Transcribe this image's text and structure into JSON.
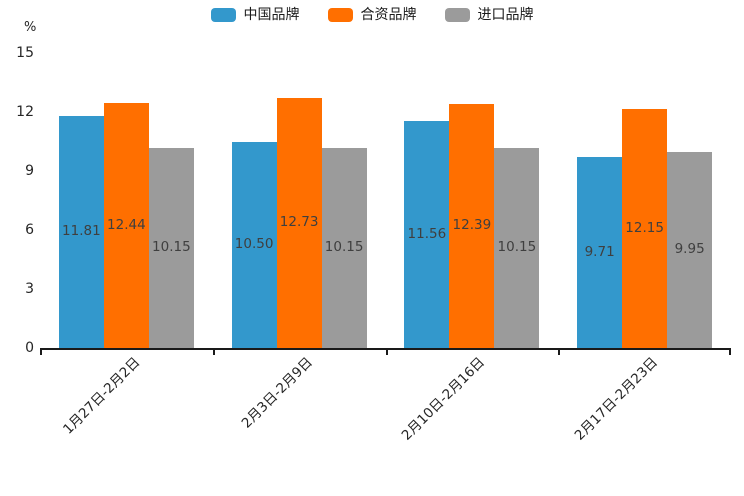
{
  "chart_data": {
    "type": "bar",
    "title": "",
    "ylabel": "%",
    "xlabel": "",
    "ylim": [
      0,
      15
    ],
    "yticks": [
      "0",
      "3",
      "6",
      "9",
      "12",
      "15"
    ],
    "grid": false,
    "legend_position": "top",
    "value_labels_position": "center-of-bar",
    "categories": [
      "1月27日-2月2日",
      "2月3日-2月9日",
      "2月10日-2月16日",
      "2月17日-2月23日"
    ],
    "series": [
      {
        "name": "中国品牌",
        "color": "#3398cc",
        "values": [
          11.81,
          10.5,
          11.56,
          9.71
        ],
        "labels": [
          "11.81",
          "10.50",
          "11.56",
          "9.71"
        ]
      },
      {
        "name": "合资品牌",
        "color": "#ff6f00",
        "values": [
          12.44,
          12.73,
          12.39,
          12.15
        ],
        "labels": [
          "12.44",
          "12.73",
          "12.39",
          "12.15"
        ]
      },
      {
        "name": "进口品牌",
        "color": "#9b9b9b",
        "values": [
          10.15,
          10.15,
          10.15,
          9.95
        ],
        "labels": [
          "10.15",
          "10.15",
          "10.15",
          "9.95"
        ]
      }
    ],
    "colors": {
      "axis": "#1a1a1a",
      "tick_text": "#262626",
      "value_label_text": "#3f3f3f"
    }
  }
}
